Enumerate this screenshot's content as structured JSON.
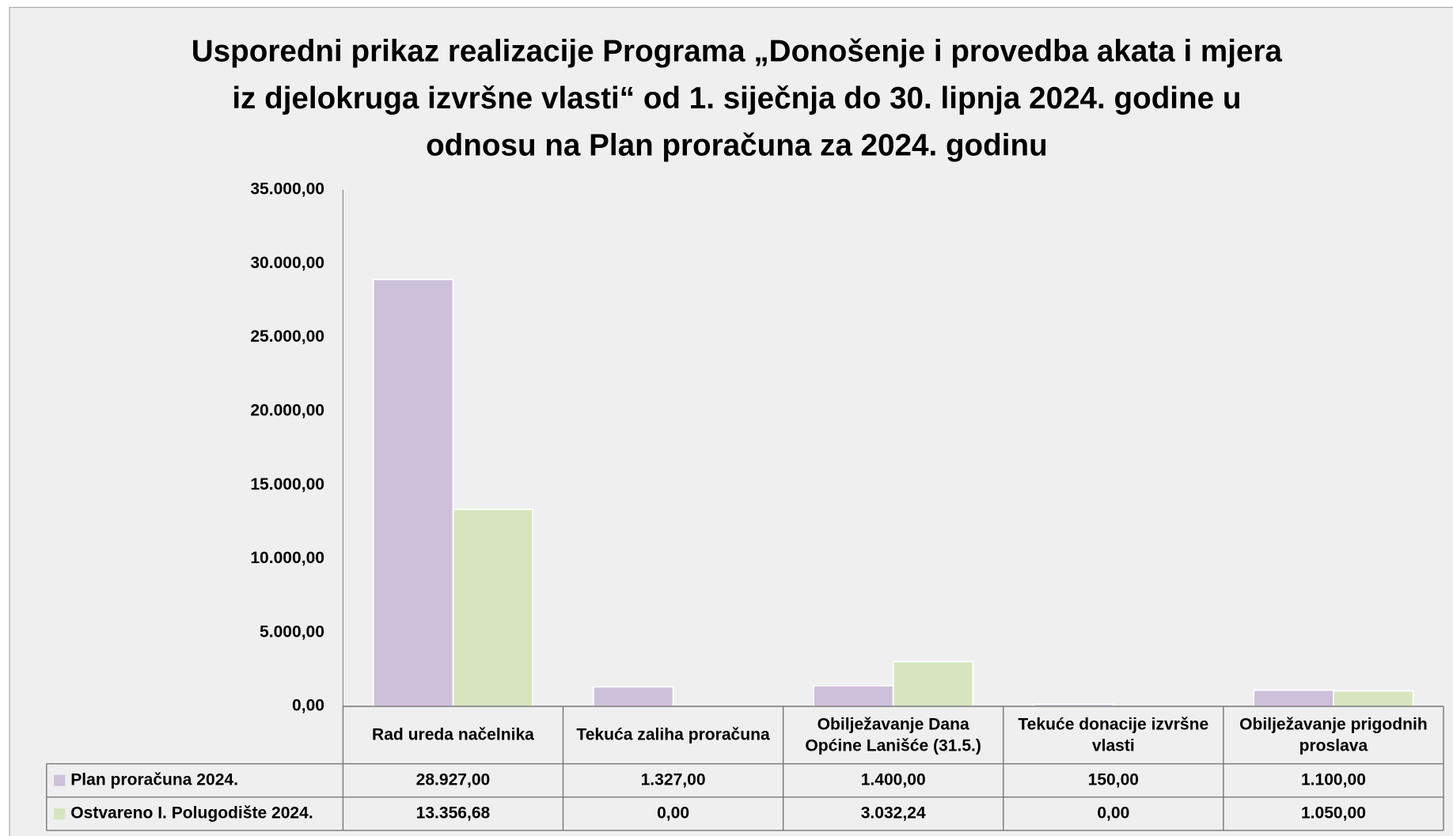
{
  "chart_data": {
    "type": "bar",
    "title": "Usporedni prikaz realizacije Programa „Donošenje i provedba akata i mjera iz djelokruga izvršne vlasti“  od 1. siječnja do 30. lipnja 2024. godine u odnosu na Plan proračuna za 2024. godinu",
    "categories": [
      "Rad ureda načelnika",
      "Tekuća zaliha proračuna",
      "Obilježavanje Dana Općine Lanišće (31.5.)",
      "Tekuće donacije izvršne vlasti",
      "Obilježavanje prigodnih proslava"
    ],
    "series": [
      {
        "name": "Plan proračuna 2024.",
        "color": "#ccc0da",
        "values": [
          28927,
          1327,
          1400,
          150,
          1100
        ],
        "value_labels": [
          "28.927,00",
          "1.327,00",
          "1.400,00",
          "150,00",
          "1.100,00"
        ]
      },
      {
        "name": "Ostvareno I. Polugodište 2024.",
        "color": "#d7e4bd",
        "values": [
          13356.68,
          0,
          3032.24,
          0,
          1050
        ],
        "value_labels": [
          "13.356,68",
          "0,00",
          "3.032,24",
          "0,00",
          "1.050,00"
        ]
      }
    ],
    "ylim": [
      0,
      35000
    ],
    "yticks": [
      {
        "value": 0,
        "label": "0,00"
      },
      {
        "value": 5000,
        "label": "5.000,00"
      },
      {
        "value": 10000,
        "label": "10.000,00"
      },
      {
        "value": 15000,
        "label": "15.000,00"
      },
      {
        "value": 20000,
        "label": "20.000,00"
      },
      {
        "value": 25000,
        "label": "25.000,00"
      },
      {
        "value": 30000,
        "label": "30.000,00"
      },
      {
        "value": 35000,
        "label": "35.000,00"
      }
    ]
  }
}
